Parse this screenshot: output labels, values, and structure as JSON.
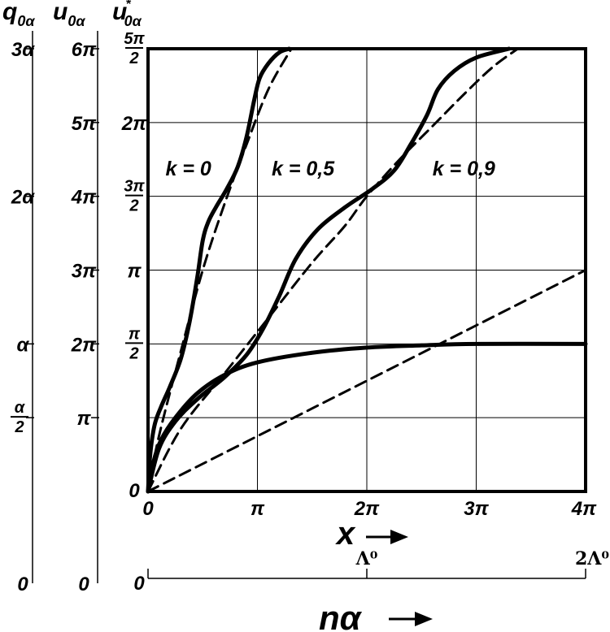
{
  "chart_data": {
    "type": "line",
    "xlabel": "x",
    "secondary_xlabel": "nα",
    "x_range_pi": [
      0,
      4
    ],
    "y_range_u0": [
      0,
      6
    ],
    "grid": true,
    "x_ticks": [
      {
        "value": 0,
        "label": "0"
      },
      {
        "value": 1,
        "label": "π"
      },
      {
        "value": 2,
        "label": "2π"
      },
      {
        "value": 3,
        "label": "3π"
      },
      {
        "value": 4,
        "label": "4π"
      }
    ],
    "secondary_x_ticks": [
      {
        "value": 0,
        "label": "0"
      },
      {
        "value": 2,
        "label": "Λ⁰"
      },
      {
        "value": 4,
        "label": "2Λ⁰"
      }
    ],
    "y_axes": [
      {
        "header": {
          "base": "q",
          "sub": "0α"
        },
        "ticks": [
          {
            "value": 0,
            "label": "0"
          },
          {
            "value": 1,
            "label": "α/2",
            "num": "α",
            "den": "2"
          },
          {
            "value": 2,
            "label": "α"
          },
          {
            "value": 4,
            "label": "2α"
          },
          {
            "value": 6,
            "label": "3α"
          }
        ]
      },
      {
        "header": {
          "base": "u",
          "sub": "0α"
        },
        "ticks": [
          {
            "value": 0,
            "label": "0"
          },
          {
            "value": 1,
            "label": "π"
          },
          {
            "value": 2,
            "label": "2π"
          },
          {
            "value": 3,
            "label": "3π"
          },
          {
            "value": 4,
            "label": "4π"
          },
          {
            "value": 5,
            "label": "5π"
          },
          {
            "value": 6,
            "label": "6π"
          }
        ]
      },
      {
        "header": {
          "base": "u",
          "sub": "0α",
          "sup": "*"
        },
        "ticks": [
          {
            "value": 0,
            "label": "0"
          },
          {
            "value": 2,
            "label": "π/2",
            "num": "π",
            "den": "2"
          },
          {
            "value": 3,
            "label": "π"
          },
          {
            "value": 4,
            "label": "3π/2",
            "num": "3π",
            "den": "2"
          },
          {
            "value": 5,
            "label": "2π"
          },
          {
            "value": 6,
            "label": "5π/2",
            "num": "5π",
            "den": "2"
          }
        ]
      }
    ],
    "series": [
      {
        "name": "k = 0",
        "style": "solid",
        "points": [
          [
            0,
            0
          ],
          [
            0.02,
            0.5
          ],
          [
            0.06,
            0.9
          ],
          [
            0.12,
            1.15
          ],
          [
            0.2,
            1.42
          ],
          [
            0.3,
            1.8
          ],
          [
            0.38,
            2.3
          ],
          [
            0.45,
            2.9
          ],
          [
            0.5,
            3.4
          ],
          [
            0.55,
            3.65
          ],
          [
            0.62,
            3.85
          ],
          [
            0.72,
            4.1
          ],
          [
            0.82,
            4.4
          ],
          [
            0.9,
            4.8
          ],
          [
            0.97,
            5.3
          ],
          [
            1.02,
            5.6
          ],
          [
            1.1,
            5.8
          ],
          [
            1.2,
            5.95
          ],
          [
            1.29,
            6.0
          ]
        ]
      },
      {
        "name": "k = 0 asymptote",
        "style": "dashed",
        "points": [
          [
            0,
            0
          ],
          [
            0.1,
            0.75
          ],
          [
            0.3,
            1.9
          ],
          [
            0.5,
            3.0
          ],
          [
            0.7,
            3.9
          ],
          [
            0.9,
            4.7
          ],
          [
            1.1,
            5.45
          ],
          [
            1.31,
            6.0
          ]
        ]
      },
      {
        "name": "k = 0,5",
        "style": "solid",
        "points": [
          [
            0,
            0
          ],
          [
            0.1,
            0.58
          ],
          [
            0.25,
            0.95
          ],
          [
            0.45,
            1.25
          ],
          [
            0.7,
            1.55
          ],
          [
            0.9,
            1.85
          ],
          [
            1.05,
            2.2
          ],
          [
            1.2,
            2.65
          ],
          [
            1.35,
            3.15
          ],
          [
            1.55,
            3.55
          ],
          [
            1.8,
            3.85
          ],
          [
            2.05,
            4.1
          ],
          [
            2.25,
            4.35
          ],
          [
            2.4,
            4.7
          ],
          [
            2.55,
            5.1
          ],
          [
            2.65,
            5.45
          ],
          [
            2.8,
            5.7
          ],
          [
            3.0,
            5.88
          ],
          [
            3.3,
            6.0
          ]
        ]
      },
      {
        "name": "k = 0,5 asymptote",
        "style": "dashed",
        "points": [
          [
            0,
            0
          ],
          [
            0.3,
            0.85
          ],
          [
            0.7,
            1.6
          ],
          [
            1.1,
            2.35
          ],
          [
            1.5,
            3.1
          ],
          [
            1.8,
            3.6
          ],
          [
            2.0,
            4.0
          ],
          [
            2.3,
            4.5
          ],
          [
            2.6,
            4.95
          ],
          [
            2.9,
            5.4
          ],
          [
            3.15,
            5.75
          ],
          [
            3.38,
            6.0
          ]
        ]
      },
      {
        "name": "k = 0,9",
        "style": "solid",
        "points": [
          [
            0,
            0
          ],
          [
            0.05,
            0.4
          ],
          [
            0.12,
            0.7
          ],
          [
            0.25,
            1.0
          ],
          [
            0.45,
            1.33
          ],
          [
            0.7,
            1.58
          ],
          [
            1.0,
            1.75
          ],
          [
            1.5,
            1.88
          ],
          [
            2.0,
            1.95
          ],
          [
            2.5,
            1.98
          ],
          [
            3.0,
            2.0
          ],
          [
            4.0,
            2.0
          ]
        ]
      },
      {
        "name": "k = 0,9 asymptote",
        "style": "dashed",
        "points": [
          [
            0,
            0
          ],
          [
            4,
            3.0
          ]
        ]
      }
    ],
    "annotations": [
      {
        "text": "k = 0",
        "x": 0.16,
        "y": 4.28
      },
      {
        "text": "k = 0,5",
        "x": 1.13,
        "y": 4.28
      },
      {
        "text": "k = 0,9",
        "x": 2.6,
        "y": 4.28
      }
    ]
  }
}
